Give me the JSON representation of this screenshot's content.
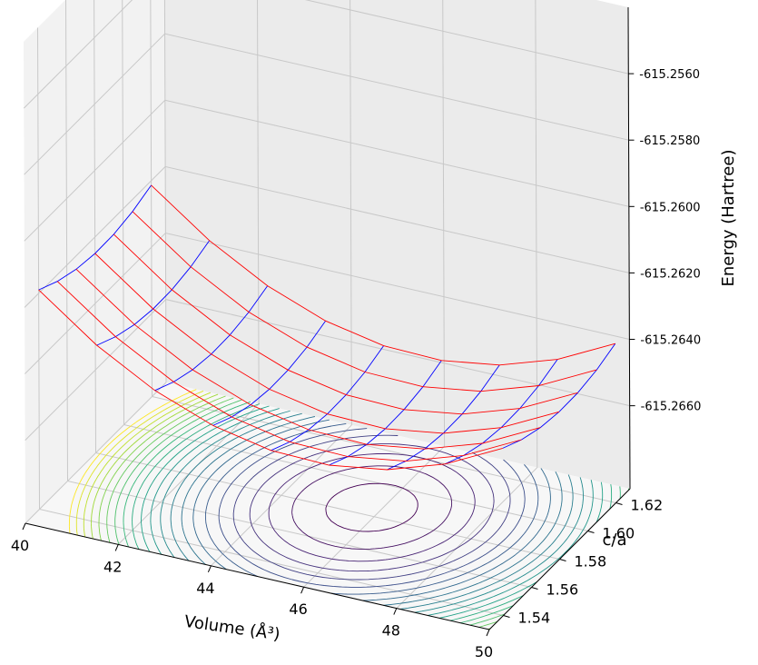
{
  "chart_data": {
    "type": "surface3d",
    "xlabel": "Volume (Å³)",
    "ylabel": "c/a",
    "zlabel": "Energy (Hartree)",
    "x_ticks": [
      "40",
      "42",
      "44",
      "46",
      "48",
      "50"
    ],
    "y_ticks": [
      "1.54",
      "1.56",
      "1.58",
      "1.60",
      "1.62"
    ],
    "z_ticks": [
      "-615.2660",
      "-615.2640",
      "-615.2620",
      "-615.2600",
      "-615.2580",
      "-615.2560"
    ],
    "xlim": [
      40,
      50
    ],
    "ylim": [
      1.53,
      1.63
    ],
    "zlim": [
      -615.2685,
      -615.254
    ],
    "grid": true,
    "wireframe_colors": {
      "constant_volume": "#0000ff",
      "constant_ca": "#ff0000"
    },
    "contour_colormap": "viridis",
    "surface": {
      "e_min": -615.2658,
      "v_min": 45.8,
      "ca_min": 1.585,
      "curvature_volume": 9.8e-05,
      "curvature_ca": 0.3,
      "volume_samples": [
        40,
        41.25,
        42.5,
        43.75,
        45,
        46.25,
        47.5,
        48.75,
        50
      ],
      "ca_samples": [
        1.54,
        1.5533,
        1.5667,
        1.58,
        1.5933,
        1.6067,
        1.62
      ]
    },
    "contour_levels": 22
  }
}
